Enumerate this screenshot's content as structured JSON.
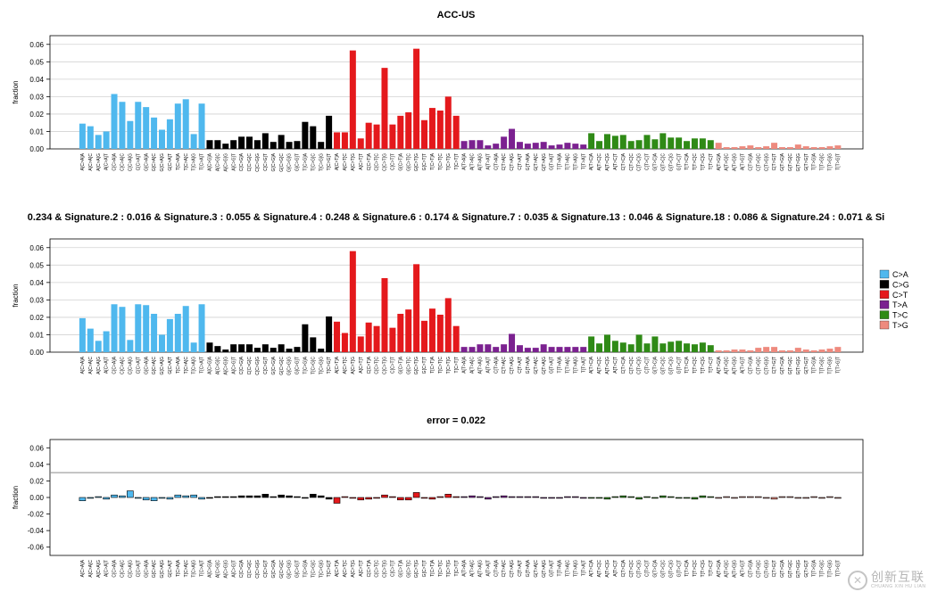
{
  "chart_data": [
    {
      "type": "bar",
      "title": "ACC-US",
      "ylabel": "fraction",
      "ylim": [
        0,
        0.065
      ],
      "yticks": [
        "0.00",
        "0.01",
        "0.02",
        "0.03",
        "0.04",
        "0.05",
        "0.06"
      ],
      "refline": null,
      "series": [
        {
          "values": [
            0.0145,
            0.013,
            0.008,
            0.01,
            0.0315,
            0.027,
            0.016,
            0.027,
            0.024,
            0.018,
            0.011,
            0.017,
            0.026,
            0.0285,
            0.0085,
            0.026,
            0.005,
            0.005,
            0.003,
            0.005,
            0.007,
            0.007,
            0.005,
            0.009,
            0.004,
            0.008,
            0.004,
            0.0045,
            0.0155,
            0.013,
            0.004,
            0.019,
            0.0095,
            0.0095,
            0.0565,
            0.006,
            0.015,
            0.014,
            0.0465,
            0.014,
            0.019,
            0.021,
            0.0575,
            0.0165,
            0.0235,
            0.022,
            0.03,
            0.019,
            0.0045,
            0.005,
            0.005,
            0.002,
            0.003,
            0.007,
            0.0115,
            0.004,
            0.003,
            0.0035,
            0.004,
            0.002,
            0.0025,
            0.0035,
            0.003,
            0.0025,
            0.009,
            0.0045,
            0.0085,
            0.0075,
            0.008,
            0.0045,
            0.005,
            0.008,
            0.0055,
            0.009,
            0.0065,
            0.0065,
            0.0045,
            0.006,
            0.006,
            0.005,
            0.0035,
            0.001,
            0.001,
            0.0015,
            0.002,
            0.001,
            0.0015,
            0.0035,
            0.001,
            0.001,
            0.0025,
            0.0015,
            0.001,
            0.001,
            0.0015,
            0.002
          ]
        }
      ]
    },
    {
      "type": "bar",
      "title": "0.234 & Signature.2 : 0.016 & Signature.3 : 0.055 & Signature.4 : 0.248 & Signature.6 : 0.174 & Signature.7 : 0.035 & Signature.13 : 0.046 & Signature.18 : 0.086 & Signature.24 : 0.071 & Si",
      "ylabel": "fraction",
      "ylim": [
        0,
        0.065
      ],
      "yticks": [
        "0.00",
        "0.01",
        "0.02",
        "0.03",
        "0.04",
        "0.05",
        "0.06"
      ],
      "refline": null,
      "series": [
        {
          "values": [
            0.0195,
            0.0135,
            0.0065,
            0.012,
            0.0275,
            0.026,
            0.007,
            0.0275,
            0.027,
            0.022,
            0.01,
            0.019,
            0.022,
            0.0265,
            0.0055,
            0.0275,
            0.0055,
            0.0035,
            0.0015,
            0.0045,
            0.0045,
            0.0045,
            0.0025,
            0.0045,
            0.0025,
            0.0045,
            0.002,
            0.003,
            0.016,
            0.0085,
            0.002,
            0.0205,
            0.0175,
            0.011,
            0.058,
            0.009,
            0.017,
            0.015,
            0.0425,
            0.014,
            0.022,
            0.0245,
            0.0505,
            0.018,
            0.025,
            0.0215,
            0.031,
            0.015,
            0.003,
            0.003,
            0.0045,
            0.0045,
            0.003,
            0.0045,
            0.0105,
            0.004,
            0.0025,
            0.0025,
            0.0045,
            0.003,
            0.003,
            0.003,
            0.003,
            0.003,
            0.009,
            0.005,
            0.01,
            0.0065,
            0.0055,
            0.0045,
            0.01,
            0.005,
            0.009,
            0.005,
            0.006,
            0.0065,
            0.005,
            0.0045,
            0.0055,
            0.004,
            0.001,
            0.001,
            0.0015,
            0.0015,
            0.001,
            0.0025,
            0.003,
            0.003,
            0.001,
            0.001,
            0.0025,
            0.0015,
            0.001,
            0.0015,
            0.002,
            0.003
          ]
        }
      ]
    },
    {
      "type": "bar",
      "title": "error = 0.022",
      "ylabel": "fraction",
      "ylim": [
        -0.07,
        0.07
      ],
      "yticks": [
        "-0.06",
        "-0.04",
        "-0.02",
        "0.00",
        "0.02",
        "0.04",
        "0.06"
      ],
      "refline": 0.03,
      "series": [
        {
          "values": [
            -0.004,
            -0.001,
            0.001,
            -0.002,
            0.003,
            0.002,
            0.008,
            -0.001,
            -0.003,
            -0.004,
            -0.001,
            -0.002,
            0.003,
            0.002,
            0.003,
            -0.002,
            -0.001,
            0.001,
            0.001,
            0.001,
            0.002,
            0.002,
            0.002,
            0.004,
            0.001,
            0.003,
            0.002,
            0.001,
            -0.001,
            0.004,
            0.002,
            -0.002,
            -0.007,
            0.001,
            -0.001,
            -0.003,
            -0.002,
            -0.001,
            0.003,
            0.001,
            -0.003,
            -0.003,
            0.006,
            -0.001,
            -0.002,
            0.001,
            0.004,
            0.001,
            0.001,
            0.002,
            0.001,
            -0.002,
            0.001,
            0.002,
            0.001,
            0.001,
            0.001,
            0.001,
            -0.001,
            -0.001,
            -0.001,
            0.001,
            0.001,
            -0.001,
            -0.001,
            -0.001,
            -0.002,
            0.001,
            0.002,
            0.001,
            -0.002,
            0.001,
            -0.001,
            0.002,
            0.001,
            -0.001,
            -0.001,
            -0.002,
            0.002,
            0.001,
            -0.001,
            0.001,
            -0.001,
            0.001,
            0.001,
            0.001,
            -0.001,
            -0.002,
            0.001,
            0.001,
            -0.001,
            -0.001,
            0.001,
            -0.001,
            0.001,
            -0.001
          ]
        }
      ]
    }
  ],
  "shared": {
    "categories": [
      "A[C>A]A",
      "A[C>A]C",
      "A[C>A]G",
      "A[C>A]T",
      "C[C>A]A",
      "C[C>A]C",
      "C[C>A]G",
      "C[C>A]T",
      "G[C>A]A",
      "G[C>A]C",
      "G[C>A]G",
      "G[C>A]T",
      "T[C>A]A",
      "T[C>A]C",
      "T[C>A]G",
      "T[C>A]T",
      "A[C>G]A",
      "A[C>G]C",
      "A[C>G]G",
      "A[C>G]T",
      "C[C>G]A",
      "C[C>G]C",
      "C[C>G]G",
      "C[C>G]T",
      "G[C>G]A",
      "G[C>G]C",
      "G[C>G]G",
      "G[C>G]T",
      "T[C>G]A",
      "T[C>G]C",
      "T[C>G]G",
      "T[C>G]T",
      "A[C>T]A",
      "A[C>T]C",
      "A[C>T]G",
      "A[C>T]T",
      "C[C>T]A",
      "C[C>T]C",
      "C[C>T]G",
      "C[C>T]T",
      "G[C>T]A",
      "G[C>T]C",
      "G[C>T]G",
      "G[C>T]T",
      "T[C>T]A",
      "T[C>T]C",
      "T[C>T]G",
      "T[C>T]T",
      "A[T>A]A",
      "A[T>A]C",
      "A[T>A]G",
      "A[T>A]T",
      "C[T>A]A",
      "C[T>A]C",
      "C[T>A]G",
      "C[T>A]T",
      "G[T>A]A",
      "G[T>A]C",
      "G[T>A]G",
      "G[T>A]T",
      "T[T>A]A",
      "T[T>A]C",
      "T[T>A]G",
      "T[T>A]T",
      "A[T>C]A",
      "A[T>C]C",
      "A[T>C]G",
      "A[T>C]T",
      "C[T>C]A",
      "C[T>C]C",
      "C[T>C]G",
      "C[T>C]T",
      "G[T>C]A",
      "G[T>C]C",
      "G[T>C]G",
      "G[T>C]T",
      "T[T>C]A",
      "T[T>C]C",
      "T[T>C]G",
      "T[T>C]T",
      "A[T>G]A",
      "A[T>G]C",
      "A[T>G]G",
      "A[T>G]T",
      "C[T>G]A",
      "C[T>G]C",
      "C[T>G]G",
      "C[T>G]T",
      "G[T>G]A",
      "G[T>G]C",
      "G[T>G]G",
      "G[T>G]T",
      "T[T>G]A",
      "T[T>G]C",
      "T[T>G]G",
      "T[T>G]T"
    ],
    "mutation_types": [
      "C>A",
      "C>G",
      "C>T",
      "T>A",
      "T>C",
      "T>G"
    ],
    "colors": [
      "#4fb8ee",
      "#000000",
      "#e4191c",
      "#7b2190",
      "#2f8a16",
      "#ee8a7e"
    ]
  },
  "legend": {
    "items": [
      {
        "label": "C>A",
        "color": "#4fb8ee"
      },
      {
        "label": "C>G",
        "color": "#000000"
      },
      {
        "label": "C>T",
        "color": "#e4191c"
      },
      {
        "label": "T>A",
        "color": "#7b2190"
      },
      {
        "label": "T>C",
        "color": "#2f8a16"
      },
      {
        "label": "T>G",
        "color": "#ee8a7e"
      }
    ]
  },
  "watermark": {
    "text": "创新互联",
    "subtext": "CHUANG XIN HU LIAN"
  }
}
